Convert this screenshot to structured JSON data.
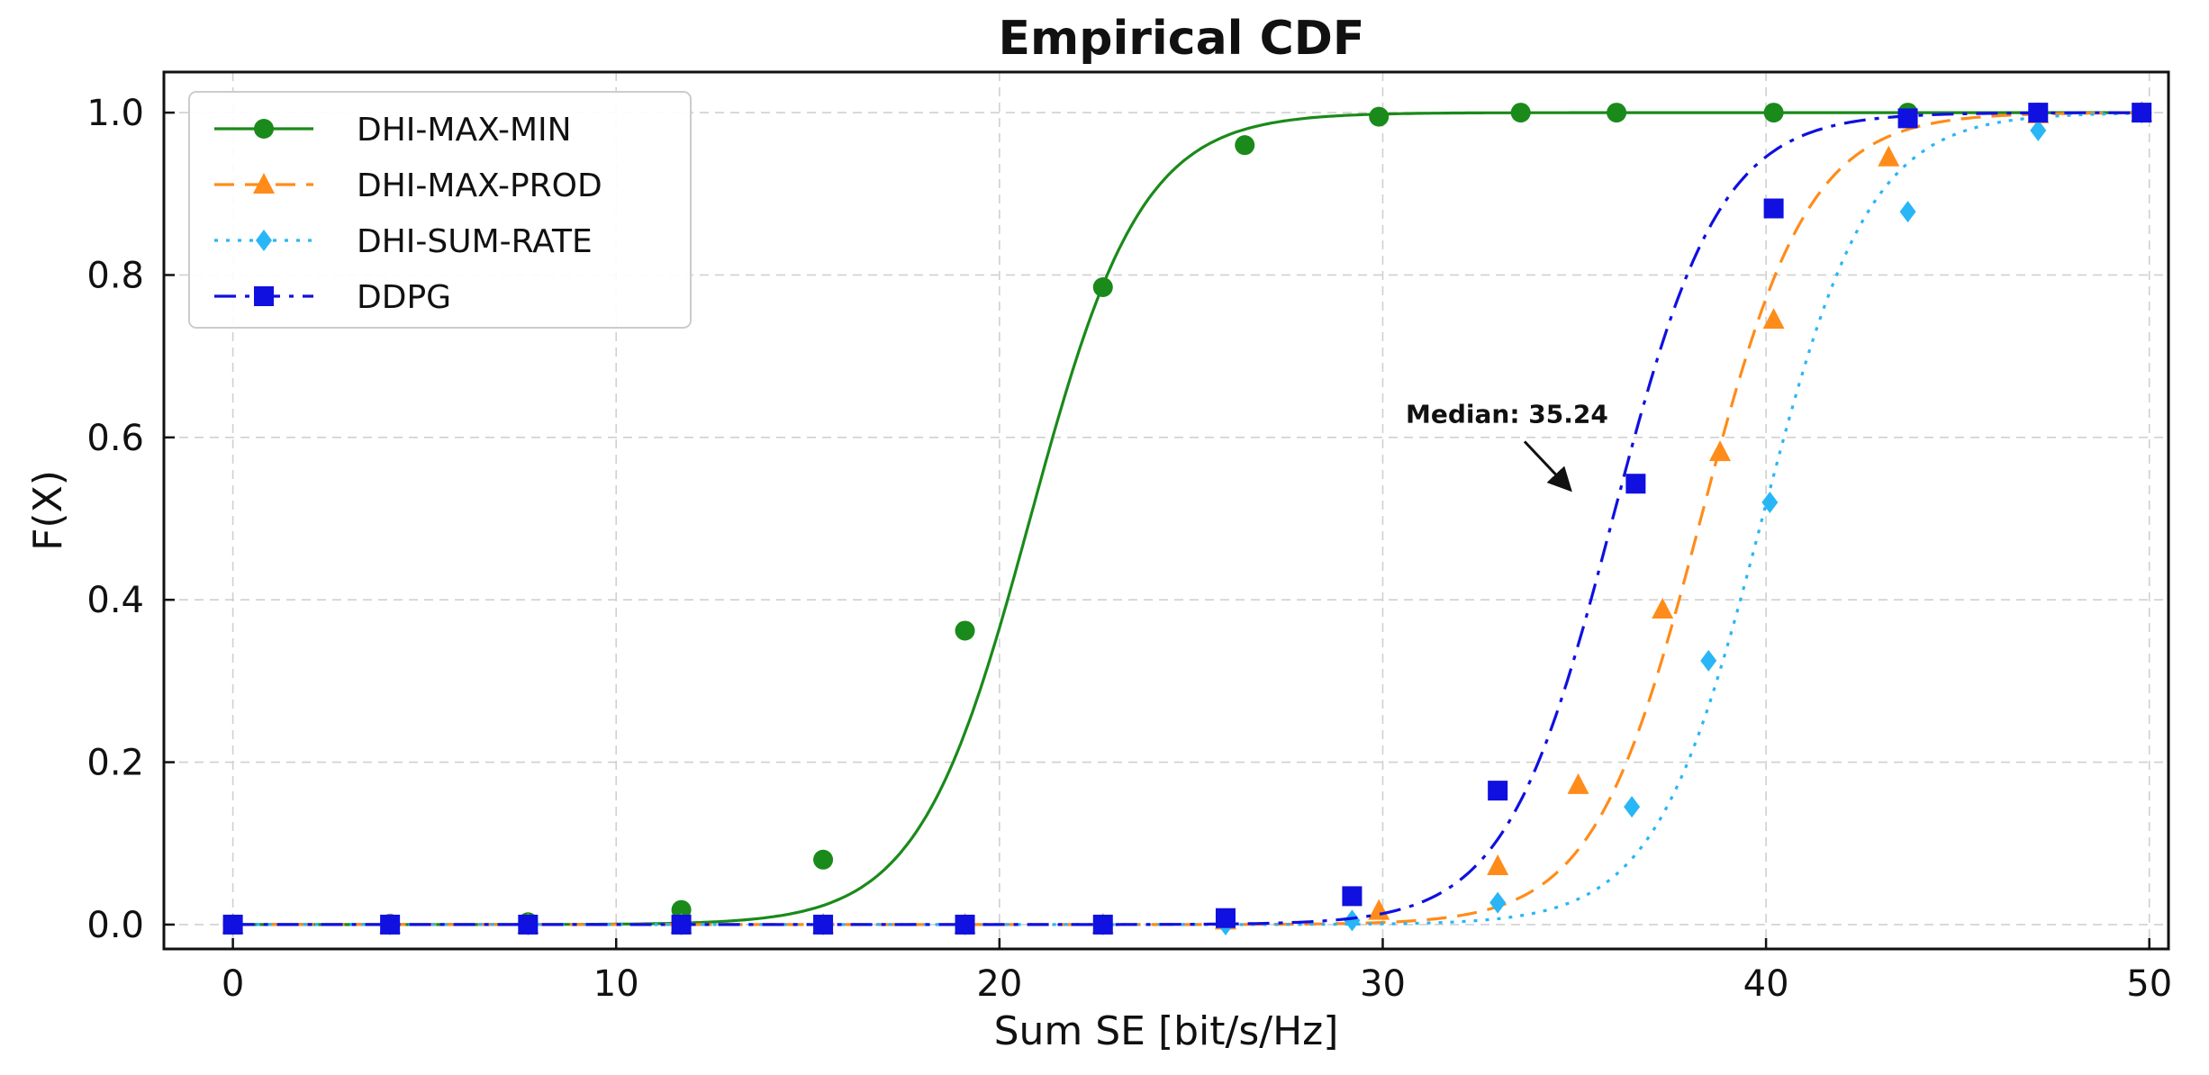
{
  "chart_data": {
    "type": "line",
    "title": "Empirical CDF",
    "xlabel": "Sum SE [bit/s/Hz]",
    "ylabel": "F(X)",
    "xlim": [
      -1.8,
      50.5
    ],
    "ylim": [
      -0.03,
      1.05
    ],
    "xticks": [
      0,
      10,
      20,
      30,
      40,
      50
    ],
    "yticks": [
      0.0,
      0.2,
      0.4,
      0.6,
      0.8,
      1.0
    ],
    "xtick_labels": [
      "0",
      "10",
      "20",
      "30",
      "40",
      "50"
    ],
    "ytick_labels": [
      "0.0",
      "0.2",
      "0.4",
      "0.6",
      "0.8",
      "1.0"
    ],
    "grid": true,
    "legend_position": "top-left",
    "series": [
      {
        "name": "DHI-MAX-MIN",
        "color": "#1a8a1a",
        "line_style": "solid",
        "marker": "circle",
        "curve": {
          "mu": 20.8,
          "s": 1.45
        },
        "x": [
          0,
          4.1,
          7.7,
          11.7,
          15.4,
          19.1,
          22.7,
          26.4,
          29.9,
          33.6,
          36.1,
          40.2,
          43.7,
          47.1,
          49.8
        ],
        "y": [
          0.0,
          0.001,
          0.003,
          0.018,
          0.08,
          0.362,
          0.785,
          0.96,
          0.995,
          1.0,
          1.0,
          1.0,
          1.0,
          1.0,
          1.0
        ]
      },
      {
        "name": "DHI-MAX-PROD",
        "color": "#ff8c1a",
        "line_style": "dashed",
        "marker": "triangle",
        "curve": {
          "mu": 38.3,
          "s": 1.4
        },
        "x": [
          0,
          4.1,
          7.7,
          11.7,
          15.4,
          19.1,
          22.7,
          25.9,
          29.9,
          33.0,
          35.1,
          37.3,
          38.8,
          40.2,
          43.2,
          47.1,
          49.8
        ],
        "y": [
          0.0,
          0.0,
          0.0,
          0.0,
          0.0,
          0.0,
          0.0,
          0.005,
          0.017,
          0.072,
          0.172,
          0.388,
          0.582,
          0.745,
          0.945,
          0.998,
          1.0
        ]
      },
      {
        "name": "DHI-SUM-RATE",
        "color": "#29b6f6",
        "line_style": "dotted",
        "marker": "diamond",
        "curve": {
          "mu": 39.9,
          "s": 1.4
        },
        "x": [
          0,
          4.1,
          7.7,
          11.7,
          15.4,
          19.1,
          22.7,
          25.9,
          29.2,
          33.0,
          36.5,
          38.5,
          40.1,
          43.7,
          47.1,
          49.8
        ],
        "y": [
          0.0,
          0.0,
          0.0,
          0.0,
          0.0,
          0.0,
          0.0,
          0.0,
          0.005,
          0.027,
          0.145,
          0.325,
          0.52,
          0.878,
          0.978,
          1.0
        ]
      },
      {
        "name": "DDPG",
        "color": "#1010e0",
        "line_style": "dashdot",
        "marker": "square",
        "curve": {
          "mu": 36.0,
          "s": 1.4
        },
        "x": [
          0,
          4.1,
          7.7,
          11.7,
          15.4,
          19.1,
          22.7,
          25.9,
          29.2,
          33.0,
          36.6,
          40.2,
          43.7,
          47.1,
          49.8
        ],
        "y": [
          0.0,
          0.0,
          0.0,
          0.0,
          0.0,
          0.0,
          0.0,
          0.008,
          0.035,
          0.165,
          0.543,
          0.882,
          0.993,
          1.0,
          1.0
        ]
      }
    ],
    "annotations": [
      {
        "text": "Median: 35.24",
        "x": 30.6,
        "y": 0.618,
        "arrow_from": [
          33.7,
          0.595
        ],
        "arrow_to": [
          34.9,
          0.535
        ]
      }
    ]
  }
}
